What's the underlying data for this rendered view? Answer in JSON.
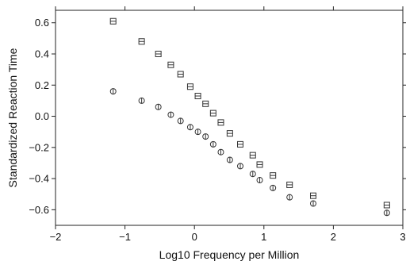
{
  "chart_data": {
    "type": "scatter",
    "xlabel": "Log10 Frequency per Million",
    "ylabel": "Standardized Reaction Time",
    "xlim": [
      -2.0,
      3.0
    ],
    "ylim": [
      -0.7,
      0.68
    ],
    "xticks": [
      -2,
      -1,
      0,
      1,
      2,
      3
    ],
    "xtick_labels": [
      "−2",
      "−1",
      "0",
      "1",
      "2",
      "3"
    ],
    "yticks": [
      0.6,
      0.4,
      0.2,
      0.0,
      -0.2,
      -0.4,
      -0.6
    ],
    "ytick_labels": [
      "0.6",
      "0.4",
      "0.2",
      "0.0",
      "−0.2",
      "−0.4",
      "−0.6"
    ],
    "grid": false,
    "series": [
      {
        "marker": "square",
        "color": "#333333",
        "points": [
          [
            -1.17,
            0.61
          ],
          [
            -0.76,
            0.48
          ],
          [
            -0.52,
            0.4
          ],
          [
            -0.34,
            0.33
          ],
          [
            -0.2,
            0.27
          ],
          [
            -0.06,
            0.19
          ],
          [
            0.05,
            0.13
          ],
          [
            0.16,
            0.08
          ],
          [
            0.27,
            0.02
          ],
          [
            0.38,
            -0.04
          ],
          [
            0.51,
            -0.11
          ],
          [
            0.66,
            -0.18
          ],
          [
            0.84,
            -0.25
          ],
          [
            0.94,
            -0.31
          ],
          [
            1.13,
            -0.38
          ],
          [
            1.37,
            -0.44
          ],
          [
            1.71,
            -0.51
          ],
          [
            2.77,
            -0.57
          ]
        ]
      },
      {
        "marker": "circle",
        "color": "#333333",
        "points": [
          [
            -1.17,
            0.16
          ],
          [
            -0.76,
            0.1
          ],
          [
            -0.52,
            0.06
          ],
          [
            -0.34,
            0.01
          ],
          [
            -0.2,
            -0.03
          ],
          [
            -0.06,
            -0.07
          ],
          [
            0.05,
            -0.1
          ],
          [
            0.16,
            -0.13
          ],
          [
            0.27,
            -0.18
          ],
          [
            0.38,
            -0.23
          ],
          [
            0.51,
            -0.28
          ],
          [
            0.66,
            -0.32
          ],
          [
            0.84,
            -0.37
          ],
          [
            0.94,
            -0.41
          ],
          [
            1.13,
            -0.46
          ],
          [
            1.37,
            -0.52
          ],
          [
            1.71,
            -0.56
          ],
          [
            2.77,
            -0.62
          ]
        ]
      }
    ]
  }
}
